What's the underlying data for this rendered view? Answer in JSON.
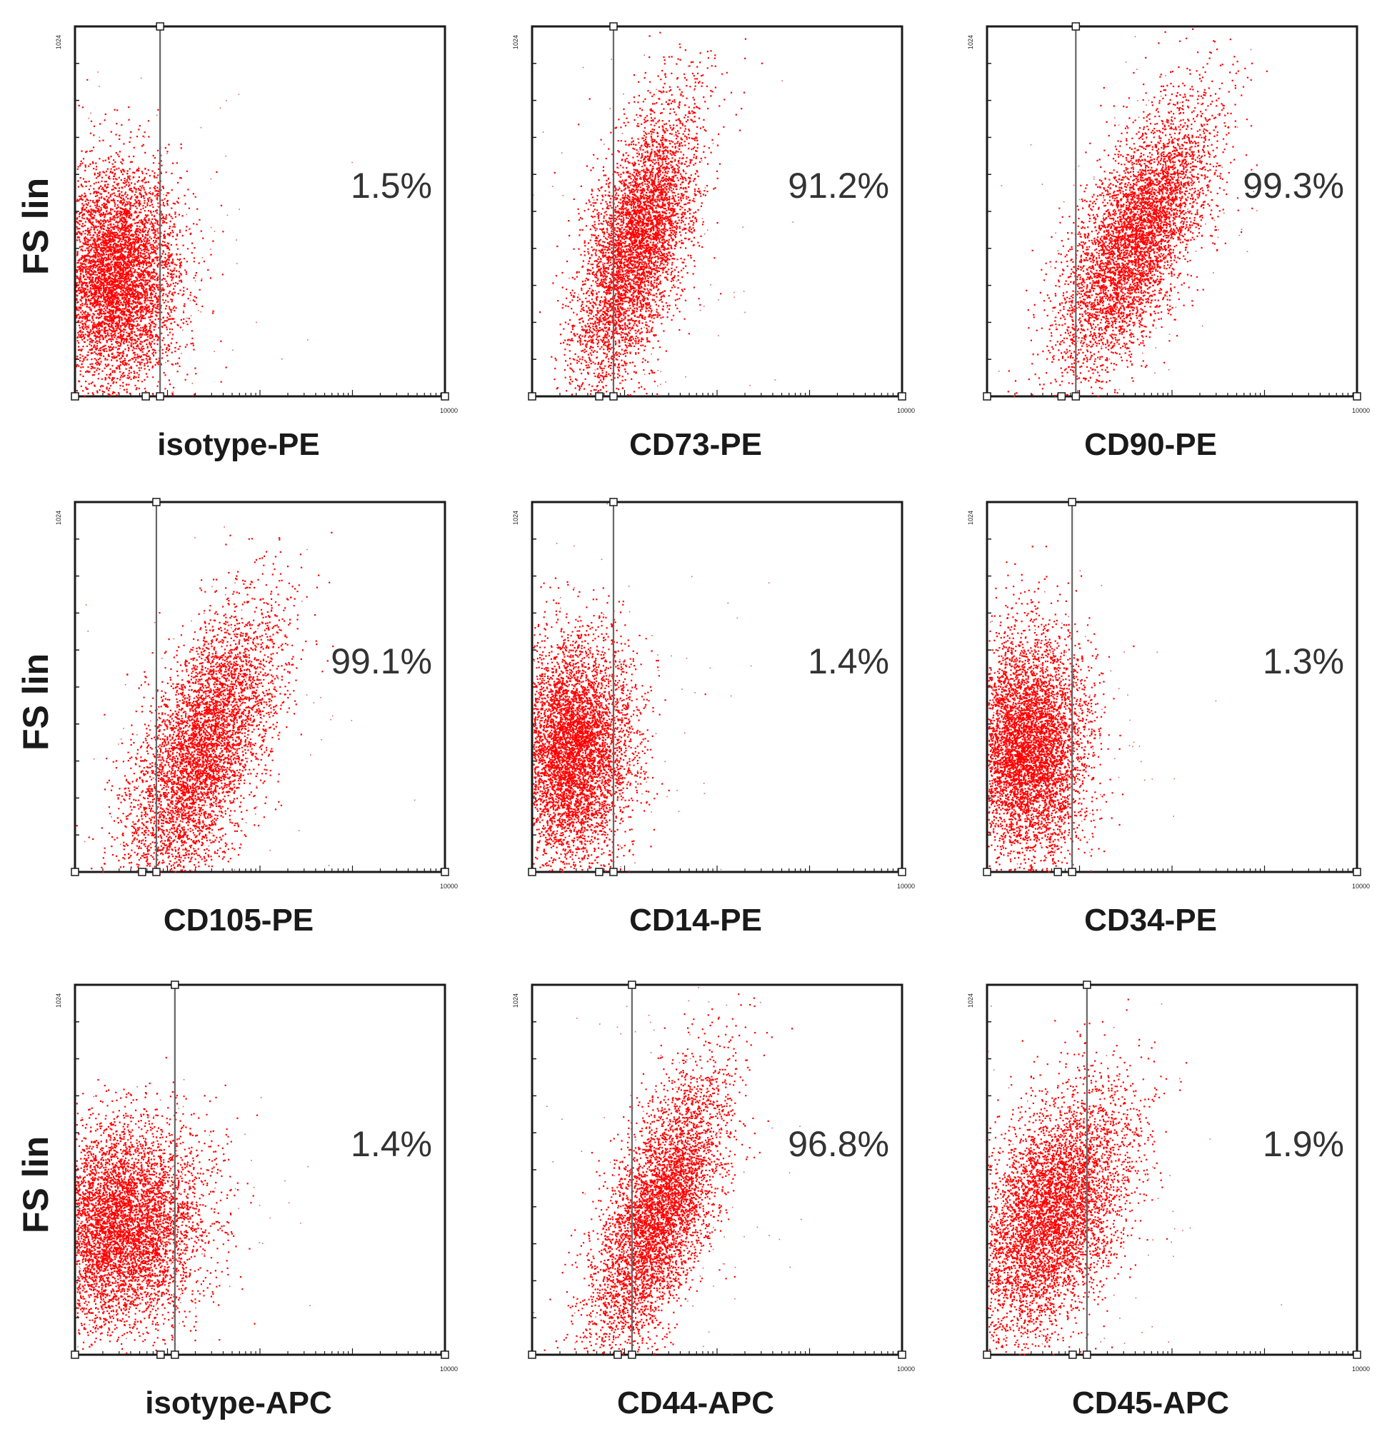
{
  "chart_data": [
    {
      "type": "scatter",
      "title": "",
      "xlabel": "isotype-PE",
      "ylabel": "FS lin",
      "percent_label": "1.5%",
      "y_axis_max": "1024",
      "x_axis_max": "10000",
      "gate_at": 0.23,
      "cloud": {
        "cx": 0.11,
        "cy": 0.33,
        "sx": 0.085,
        "sy": 0.15,
        "rot": 0,
        "n": 5600
      }
    },
    {
      "type": "scatter",
      "title": "",
      "xlabel": "CD73-PE",
      "ylabel": "",
      "percent_label": "91.2%",
      "y_axis_max": "1024",
      "x_axis_max": "10000",
      "gate_at": 0.22,
      "cloud": {
        "cx": 0.28,
        "cy": 0.41,
        "sx": 0.062,
        "sy": 0.2,
        "rot": 0.28,
        "n": 5000
      }
    },
    {
      "type": "scatter",
      "title": "",
      "xlabel": "CD90-PE",
      "ylabel": "",
      "percent_label": "99.3%",
      "y_axis_max": "1024",
      "x_axis_max": "10000",
      "gate_at": 0.24,
      "cloud": {
        "cx": 0.4,
        "cy": 0.43,
        "sx": 0.07,
        "sy": 0.2,
        "rot": 0.42,
        "n": 5000
      }
    },
    {
      "type": "scatter",
      "title": "",
      "xlabel": "CD105-PE",
      "ylabel": "FS lin",
      "percent_label": "99.1%",
      "y_axis_max": "1024",
      "x_axis_max": "10000",
      "gate_at": 0.22,
      "cloud": {
        "cx": 0.34,
        "cy": 0.33,
        "sx": 0.075,
        "sy": 0.2,
        "rot": 0.38,
        "n": 5000
      }
    },
    {
      "type": "scatter",
      "title": "",
      "xlabel": "CD14-PE",
      "ylabel": "",
      "percent_label": "1.4%",
      "y_axis_max": "1024",
      "x_axis_max": "10000",
      "gate_at": 0.22,
      "cloud": {
        "cx": 0.11,
        "cy": 0.33,
        "sx": 0.08,
        "sy": 0.15,
        "rot": 0.05,
        "n": 5600
      }
    },
    {
      "type": "scatter",
      "title": "",
      "xlabel": "CD34-PE",
      "ylabel": "",
      "percent_label": "1.3%",
      "y_axis_max": "1024",
      "x_axis_max": "10000",
      "gate_at": 0.23,
      "cloud": {
        "cx": 0.11,
        "cy": 0.34,
        "sx": 0.08,
        "sy": 0.15,
        "rot": 0,
        "n": 5600
      }
    },
    {
      "type": "scatter",
      "title": "",
      "xlabel": "isotype-APC",
      "ylabel": "FS lin",
      "percent_label": "1.4%",
      "y_axis_max": "1024",
      "x_axis_max": "10000",
      "gate_at": 0.27,
      "cloud": {
        "cx": 0.12,
        "cy": 0.35,
        "sx": 0.11,
        "sy": 0.14,
        "rot": 0.25,
        "n": 6000
      }
    },
    {
      "type": "scatter",
      "title": "",
      "xlabel": "CD44-APC",
      "ylabel": "",
      "percent_label": "96.8%",
      "y_axis_max": "1024",
      "x_axis_max": "10000",
      "gate_at": 0.27,
      "cloud": {
        "cx": 0.34,
        "cy": 0.38,
        "sx": 0.065,
        "sy": 0.2,
        "rot": 0.35,
        "n": 5000
      }
    },
    {
      "type": "scatter",
      "title": "",
      "xlabel": "CD45-APC",
      "ylabel": "",
      "percent_label": "1.9%",
      "y_axis_max": "1024",
      "x_axis_max": "10000",
      "gate_at": 0.27,
      "cloud": {
        "cx": 0.17,
        "cy": 0.38,
        "sx": 0.09,
        "sy": 0.18,
        "rot": 0.4,
        "n": 5600
      }
    }
  ],
  "colors": {
    "dots": "#ff0000",
    "axis": "#1a1a1a",
    "gate": "#666666",
    "text": "#333333"
  }
}
